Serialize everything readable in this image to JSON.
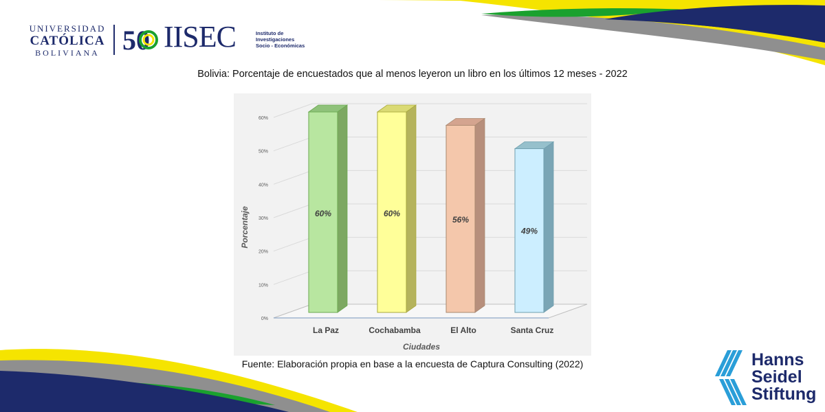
{
  "header": {
    "ucb_logo": {
      "line1": "UNIVERSIDAD",
      "line2": "CATÓLICA",
      "line3": "BOLIVIANA"
    },
    "iisec_logo": {
      "number": "50",
      "name": "IISEC",
      "subtitle": [
        "Instituto de",
        "Investigaciones",
        "Socio - Económicas"
      ]
    }
  },
  "title": "Bolivia: Porcentaje de encuestados que al menos leyeron un libro en los últimos 12 meses - 2022",
  "source": "Fuente: Elaboración propia en base a la encuesta de Captura Consulting (2022)",
  "hss_logo": {
    "lines": [
      "Hanns",
      "Seidel",
      "Stiftung"
    ]
  },
  "colors": {
    "navy": "#1d2a6b",
    "yellow": "#f5e400",
    "green": "#1aa12e",
    "gray": "#8f8f8f",
    "bar_fills": [
      "#b8e6a0",
      "#ffff99",
      "#f4c7ab",
      "#cceeff"
    ],
    "bar_sides": [
      "#7da862",
      "#b5b35c",
      "#b78f7c",
      "#7aa5b5"
    ],
    "bar_tops": [
      "#8fc27a",
      "#dada74",
      "#d4a48f",
      "#96c0cc"
    ],
    "bar_borders": [
      "#6aa84f",
      "#a9a93c",
      "#a9886f",
      "#6f9fae"
    ]
  },
  "chart_data": {
    "type": "bar",
    "categories": [
      "La Paz",
      "Cochabamba",
      "El Alto",
      "Santa Cruz"
    ],
    "values": [
      60,
      60,
      56,
      49
    ],
    "data_labels": [
      "60%",
      "60%",
      "56%",
      "49%"
    ],
    "xlabel": "Ciudades",
    "ylabel": "Porcentaje",
    "yticks": [
      "0%",
      "10%",
      "20%",
      "30%",
      "40%",
      "50%",
      "60%"
    ],
    "ylim": [
      0,
      60
    ],
    "grid": true,
    "style": "3d-column"
  }
}
